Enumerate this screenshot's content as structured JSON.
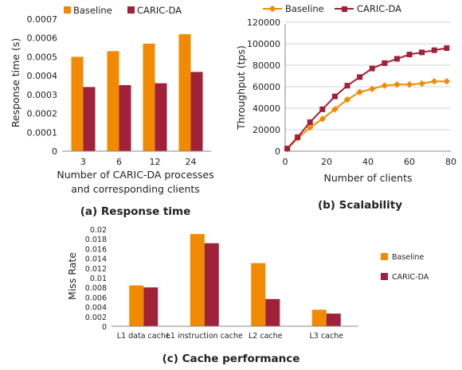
{
  "colors": {
    "baseline": "#F28A00",
    "caric": "#A0213A",
    "axis": "#888888",
    "grid": "#d4d4d4"
  },
  "chart_data": [
    {
      "id": "a",
      "type": "bar",
      "caption": "(a) Response time",
      "legend": [
        "Baseline",
        "CARIC-DA"
      ],
      "legend_position": "top",
      "ylabel": "Response time (s)",
      "xlabel_lines": [
        "Number of CARIC-DA processes",
        "and corresponding clients"
      ],
      "categories": [
        "3",
        "6",
        "12",
        "24"
      ],
      "yticks": [
        "0",
        "0.0001",
        "0.0002",
        "0.0003",
        "0.0004",
        "0.0005",
        "0.0006",
        "0.0007"
      ],
      "ylim": [
        0,
        0.0007
      ],
      "grid": false,
      "series": [
        {
          "name": "Baseline",
          "values": [
            0.0005,
            0.00053,
            0.00057,
            0.00062
          ]
        },
        {
          "name": "CARIC-DA",
          "values": [
            0.00034,
            0.00035,
            0.00036,
            0.00042
          ]
        }
      ]
    },
    {
      "id": "b",
      "type": "line",
      "caption": "(b) Scalability",
      "legend": [
        "Baseline",
        "CARIC-DA"
      ],
      "legend_position": "top",
      "ylabel": "Throughput (tps)",
      "xlabel": "Number of clients",
      "xticks": [
        "0",
        "20",
        "40",
        "60",
        "80"
      ],
      "yticks": [
        "0",
        "20000",
        "40000",
        "60000",
        "80000",
        "100000",
        "120000"
      ],
      "xlim": [
        0,
        80
      ],
      "ylim": [
        0,
        120000
      ],
      "grid": true,
      "series": [
        {
          "name": "Baseline",
          "marker": "diamond",
          "x": [
            1,
            6,
            12,
            18,
            24,
            30,
            36,
            42,
            48,
            54,
            60,
            66,
            72,
            78
          ],
          "y": [
            2000,
            12000,
            22000,
            30000,
            39000,
            48000,
            55000,
            58000,
            61000,
            62000,
            62000,
            63000,
            65000,
            65000
          ]
        },
        {
          "name": "CARIC-DA",
          "marker": "square",
          "x": [
            1,
            6,
            12,
            18,
            24,
            30,
            36,
            42,
            48,
            54,
            60,
            66,
            72,
            78
          ],
          "y": [
            2500,
            13000,
            27000,
            39000,
            51000,
            61000,
            69000,
            77000,
            82000,
            86000,
            90000,
            92000,
            94000,
            96000
          ]
        }
      ]
    },
    {
      "id": "c",
      "type": "bar",
      "caption": "(c) Cache performance",
      "legend": [
        "Baseline",
        "CARIC-DA"
      ],
      "legend_position": "right",
      "ylabel": "Miss Rate",
      "categories": [
        "L1 data cache",
        "L1 instruction cache",
        "L2 cache",
        "L3 cache"
      ],
      "yticks": [
        "0",
        "0.002",
        "0.004",
        "0.006",
        "0.008",
        "0.01",
        "0.012",
        "0.014",
        "0.016",
        "0.018",
        "0.02"
      ],
      "ylim": [
        0,
        0.02
      ],
      "grid": false,
      "series": [
        {
          "name": "Baseline",
          "values": [
            0.0084,
            0.019,
            0.013,
            0.0034
          ]
        },
        {
          "name": "CARIC-DA",
          "values": [
            0.008,
            0.0171,
            0.0056,
            0.0026
          ]
        }
      ]
    }
  ]
}
